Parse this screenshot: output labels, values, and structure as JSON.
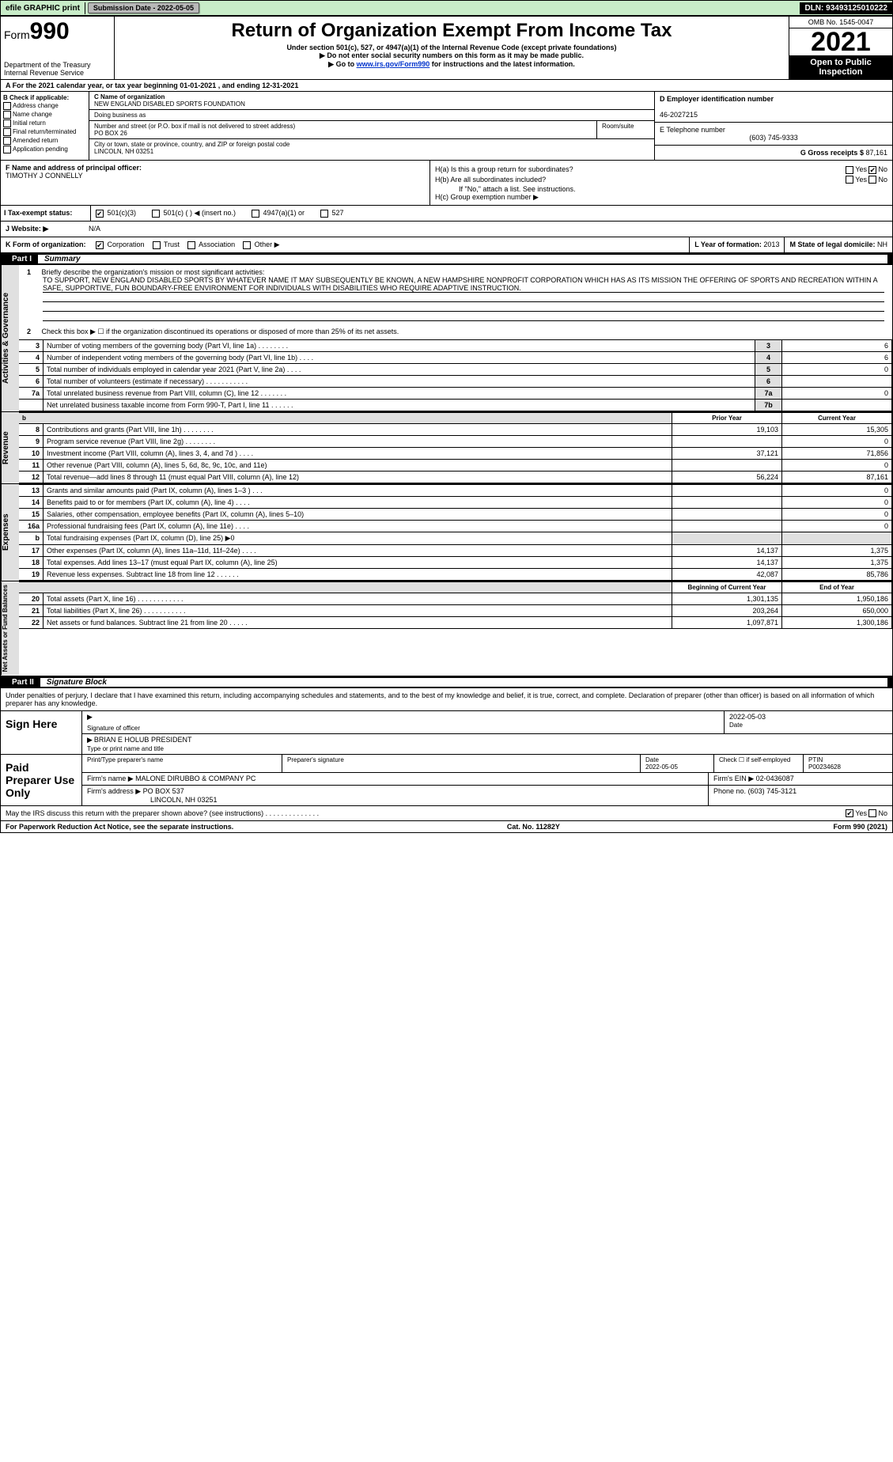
{
  "topbar": {
    "efile": "efile GRAPHIC print",
    "subdate_label": "Submission Date - 2022-05-05",
    "dln": "DLN: 93493125010222"
  },
  "header": {
    "form": "Form",
    "formno": "990",
    "dept": "Department of the Treasury",
    "irs": "Internal Revenue Service",
    "title": "Return of Organization Exempt From Income Tax",
    "sub1": "Under section 501(c), 527, or 4947(a)(1) of the Internal Revenue Code (except private foundations)",
    "sub2": "▶ Do not enter social security numbers on this form as it may be made public.",
    "sub3_pre": "▶ Go to ",
    "sub3_link": "www.irs.gov/Form990",
    "sub3_post": " for instructions and the latest information.",
    "omb": "OMB No. 1545-0047",
    "year": "2021",
    "open": "Open to Public Inspection"
  },
  "rowA": "A For the 2021 calendar year, or tax year beginning 01-01-2021    , and ending 12-31-2021",
  "boxB": {
    "title": "B Check if applicable:",
    "opts": [
      "Address change",
      "Name change",
      "Initial return",
      "Final return/terminated",
      "Amended return",
      "Application pending"
    ]
  },
  "boxC": {
    "label_name": "C Name of organization",
    "name": "NEW ENGLAND DISABLED SPORTS FOUNDATION",
    "dba_label": "Doing business as",
    "addr_label": "Number and street (or P.O. box if mail is not delivered to street address)",
    "room_label": "Room/suite",
    "addr": "PO BOX 26",
    "city_label": "City or town, state or province, country, and ZIP or foreign postal code",
    "city": "LINCOLN, NH  03251"
  },
  "boxD": {
    "label": "D Employer identification number",
    "val": "46-2027215"
  },
  "boxE": {
    "label": "E Telephone number",
    "val": "(603) 745-9333"
  },
  "boxG": {
    "label": "G Gross receipts $",
    "val": "87,161"
  },
  "boxF": {
    "label": "F Name and address of principal officer:",
    "val": "TIMOTHY J CONNELLY"
  },
  "boxH": {
    "a_label": "H(a)  Is this a group return for subordinates?",
    "yes": "Yes",
    "no": "No",
    "b_label": "H(b)  Are all subordinates included?",
    "b_note": "If \"No,\" attach a list. See instructions.",
    "c_label": "H(c)  Group exemption number ▶"
  },
  "rowI": {
    "label": "I   Tax-exempt status:",
    "opts": [
      "501(c)(3)",
      "501(c) (  ) ◀ (insert no.)",
      "4947(a)(1) or",
      "527"
    ]
  },
  "rowJ": {
    "label": "J   Website: ▶",
    "val": "N/A"
  },
  "rowK": {
    "label": "K Form of organization:",
    "opts": [
      "Corporation",
      "Trust",
      "Association",
      "Other ▶"
    ],
    "l_label": "L Year of formation:",
    "l_val": "2013",
    "m_label": "M State of legal domicile:",
    "m_val": "NH"
  },
  "part1": {
    "num": "Part I",
    "title": "Summary"
  },
  "summary": {
    "l1_label": "Briefly describe the organization's mission or most significant activities:",
    "l1_text": "TO SUPPORT, NEW ENGLAND DISABLED SPORTS BY WHATEVER NAME IT MAY SUBSEQUENTLY BE KNOWN, A NEW HAMPSHIRE NONPROFIT CORPORATION WHICH HAS AS ITS MISSION THE OFFERING OF SPORTS AND RECREATION WITHIN A SAFE, SUPPORTIVE, FUN BOUNDARY-FREE ENVIRONMENT FOR INDIVIDUALS WITH DISABILITIES WHO REQUIRE ADAPTIVE INSTRUCTION.",
    "l2": "Check this box ▶ ☐ if the organization discontinued its operations or disposed of more than 25% of its net assets.",
    "rows_single": [
      {
        "n": "3",
        "desc": "Number of voting members of the governing body (Part VI, line 1a)  .  .  .  .  .  .  .  .",
        "box": "3",
        "val": "6"
      },
      {
        "n": "4",
        "desc": "Number of independent voting members of the governing body (Part VI, line 1b)  .  .  .  .",
        "box": "4",
        "val": "6"
      },
      {
        "n": "5",
        "desc": "Total number of individuals employed in calendar year 2021 (Part V, line 2a)  .  .  .  .",
        "box": "5",
        "val": "0"
      },
      {
        "n": "6",
        "desc": "Total number of volunteers (estimate if necessary)  .  .  .  .  .  .  .  .  .  .  .",
        "box": "6",
        "val": ""
      },
      {
        "n": "7a",
        "desc": "Total unrelated business revenue from Part VIII, column (C), line 12  .  .  .  .  .  .  .",
        "box": "7a",
        "val": "0"
      },
      {
        "n": "",
        "desc": "Net unrelated business taxable income from Form 990-T, Part I, line 11  .  .  .  .  .  .",
        "box": "7b",
        "val": ""
      }
    ],
    "hdr_prior": "Prior Year",
    "hdr_curr": "Current Year",
    "revenue": [
      {
        "n": "8",
        "desc": "Contributions and grants (Part VIII, line 1h)  .  .  .  .  .  .  .  .",
        "p": "19,103",
        "c": "15,305"
      },
      {
        "n": "9",
        "desc": "Program service revenue (Part VIII, line 2g)  .  .  .  .  .  .  .  .",
        "p": "",
        "c": "0"
      },
      {
        "n": "10",
        "desc": "Investment income (Part VIII, column (A), lines 3, 4, and 7d )  .  .  .  .",
        "p": "37,121",
        "c": "71,856"
      },
      {
        "n": "11",
        "desc": "Other revenue (Part VIII, column (A), lines 5, 6d, 8c, 9c, 10c, and 11e)",
        "p": "",
        "c": "0"
      },
      {
        "n": "12",
        "desc": "Total revenue—add lines 8 through 11 (must equal Part VIII, column (A), line 12)",
        "p": "56,224",
        "c": "87,161"
      }
    ],
    "expenses": [
      {
        "n": "13",
        "desc": "Grants and similar amounts paid (Part IX, column (A), lines 1–3 )  .  .  .",
        "p": "",
        "c": "0"
      },
      {
        "n": "14",
        "desc": "Benefits paid to or for members (Part IX, column (A), line 4)  .  .  .  .",
        "p": "",
        "c": "0"
      },
      {
        "n": "15",
        "desc": "Salaries, other compensation, employee benefits (Part IX, column (A), lines 5–10)",
        "p": "",
        "c": "0"
      },
      {
        "n": "16a",
        "desc": "Professional fundraising fees (Part IX, column (A), line 11e)  .  .  .  .",
        "p": "",
        "c": "0"
      },
      {
        "n": "b",
        "desc": "Total fundraising expenses (Part IX, column (D), line 25) ▶0",
        "p": "SHADE",
        "c": "SHADE"
      },
      {
        "n": "17",
        "desc": "Other expenses (Part IX, column (A), lines 11a–11d, 11f–24e)  .  .  .  .",
        "p": "14,137",
        "c": "1,375"
      },
      {
        "n": "18",
        "desc": "Total expenses. Add lines 13–17 (must equal Part IX, column (A), line 25)",
        "p": "14,137",
        "c": "1,375"
      },
      {
        "n": "19",
        "desc": "Revenue less expenses. Subtract line 18 from line 12  .  .  .  .  .  .",
        "p": "42,087",
        "c": "85,786"
      }
    ],
    "hdr_beg": "Beginning of Current Year",
    "hdr_end": "End of Year",
    "netassets": [
      {
        "n": "20",
        "desc": "Total assets (Part X, line 16)  .  .  .  .  .  .  .  .  .  .  .  .",
        "p": "1,301,135",
        "c": "1,950,186"
      },
      {
        "n": "21",
        "desc": "Total liabilities (Part X, line 26)  .  .  .  .  .  .  .  .  .  .  .",
        "p": "203,264",
        "c": "650,000"
      },
      {
        "n": "22",
        "desc": "Net assets or fund balances. Subtract line 21 from line 20  .  .  .  .  .",
        "p": "1,097,871",
        "c": "1,300,186"
      }
    ]
  },
  "part2": {
    "num": "Part II",
    "title": "Signature Block"
  },
  "sig": {
    "penalty": "Under penalties of perjury, I declare that I have examined this return, including accompanying schedules and statements, and to the best of my knowledge and belief, it is true, correct, and complete. Declaration of preparer (other than officer) is based on all information of which preparer has any knowledge.",
    "sign_here": "Sign Here",
    "sig_officer": "Signature of officer",
    "sig_date": "2022-05-03",
    "date_label": "Date",
    "officer_name": "BRIAN E HOLUB  PRESIDENT",
    "type_name": "Type or print name and title",
    "paid": "Paid Preparer Use Only",
    "prep_name_label": "Print/Type preparer's name",
    "prep_sig_label": "Preparer's signature",
    "prep_date": "2022-05-05",
    "check_self": "Check ☐ if self-employed",
    "ptin_label": "PTIN",
    "ptin": "P00234628",
    "firm_name_label": "Firm's name    ▶",
    "firm_name": "MALONE DIRUBBO & COMPANY PC",
    "firm_ein_label": "Firm's EIN ▶",
    "firm_ein": "02-0436087",
    "firm_addr_label": "Firm's address ▶",
    "firm_addr": "PO BOX 537",
    "firm_city": "LINCOLN, NH  03251",
    "phone_label": "Phone no.",
    "phone": "(603) 745-3121",
    "may_irs": "May the IRS discuss this return with the preparer shown above? (see instructions)  .  .  .  .  .  .  .  .  .  .  .  .  .  .",
    "yes": "Yes",
    "no": "No"
  },
  "footer": {
    "left": "For Paperwork Reduction Act Notice, see the separate instructions.",
    "mid": "Cat. No. 11282Y",
    "right": "Form 990 (2021)"
  },
  "sidelabels": {
    "gov": "Activities & Governance",
    "rev": "Revenue",
    "exp": "Expenses",
    "net": "Net Assets or Fund Balances"
  }
}
